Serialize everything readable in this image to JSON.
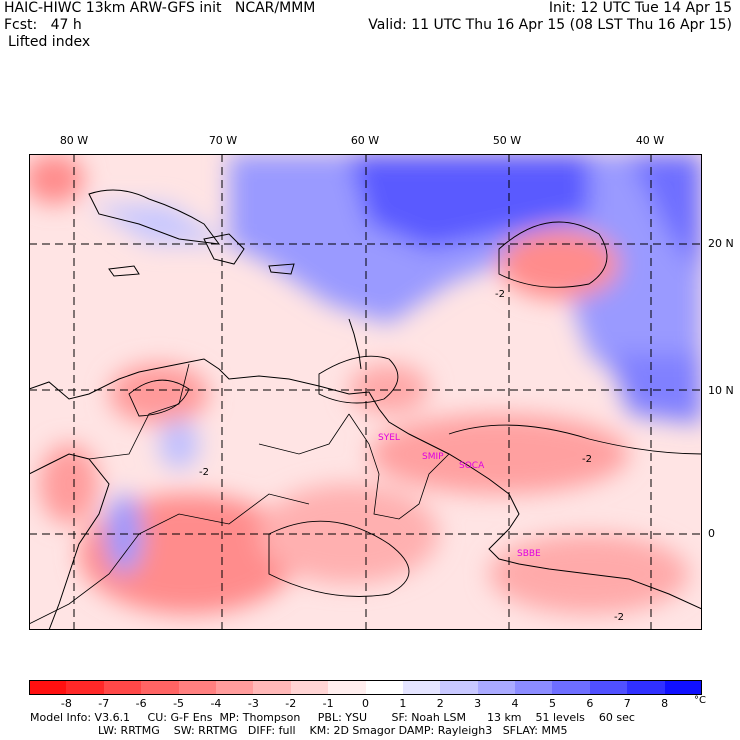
{
  "header": {
    "line1_left": "HAIC-HIWC 13km ARW-GFS init   NCAR/MMM",
    "line1_right": "Init: 12 UTC Tue 14 Apr 15",
    "line2_left": "Fcst:   47 h",
    "line2_right": "Valid: 11 UTC Thu 16 Apr 15 (08 LST Thu 16 Apr 15)",
    "field": "Lifted index"
  },
  "lon_labels": [
    "80 W",
    "70 W",
    "60 W",
    "50 W",
    "40 W"
  ],
  "lat_labels": [
    "20 N",
    "10 N",
    "0"
  ],
  "stations": [
    "SYEL",
    "SMIP",
    "SOCA",
    "SBBE"
  ],
  "contour_labels": [
    "-2",
    "-2",
    "-2",
    "-2"
  ],
  "colorbar": {
    "labels": [
      "-8",
      "-7",
      "-6",
      "-5",
      "-4",
      "-3",
      "-2",
      "-1",
      "0",
      "1",
      "2",
      "3",
      "4",
      "5",
      "6",
      "7",
      "8"
    ],
    "unit": "°C",
    "colors": [
      "#ff1010",
      "#ff2828",
      "#ff4848",
      "#ff6464",
      "#ff8080",
      "#ff9c9c",
      "#ffb8b8",
      "#ffd4d4",
      "#ffeeee",
      "#ffffff",
      "#e4e4ff",
      "#c8c8ff",
      "#aaaaff",
      "#8c8cff",
      "#6e6eff",
      "#5050ff",
      "#3030ff",
      "#1010ff"
    ]
  },
  "footer": {
    "line1": "Model Info: V3.6.1     CU: G-F Ens  MP: Thompson     PBL: YSU       SF: Noah LSM      13 km    51 levels    60 sec",
    "line2": "LW: RRTMG    SW: RRTMG   DIFF: full    KM: 2D Smagor DAMP: Rayleigh3   SFLAY: MM5"
  }
}
